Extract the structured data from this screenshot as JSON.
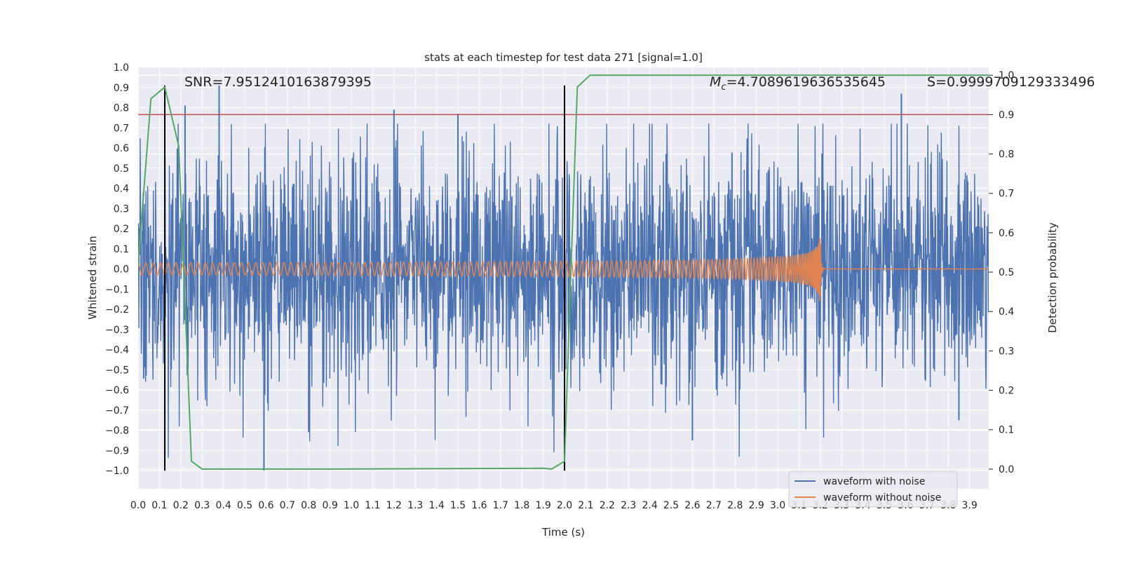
{
  "chart_data": {
    "type": "line",
    "title": "stats at each timestep for test data 271 [signal=1.0]",
    "xlabel": "Time (s)",
    "ylabel": "Whitened strain",
    "y2label": "Detection probability",
    "xlim": [
      0.0,
      3.99
    ],
    "ylim": [
      -1.09,
      1.0
    ],
    "y2lim": [
      -0.05,
      1.02
    ],
    "xticks": [
      "0.0",
      "0.1",
      "0.2",
      "0.3",
      "0.4",
      "0.5",
      "0.6",
      "0.7",
      "0.8",
      "0.9",
      "1.0",
      "1.1",
      "1.2",
      "1.3",
      "1.4",
      "1.5",
      "1.6",
      "1.7",
      "1.8",
      "1.9",
      "2.0",
      "2.1",
      "2.2",
      "2.3",
      "2.4",
      "2.5",
      "2.6",
      "2.7",
      "2.8",
      "2.9",
      "3.0",
      "3.1",
      "3.2",
      "3.3",
      "3.4",
      "3.5",
      "3.6",
      "3.7",
      "3.8",
      "3.9"
    ],
    "yticks": [
      "1.0",
      "0.9",
      "0.8",
      "0.7",
      "0.6",
      "0.5",
      "0.4",
      "0.3",
      "0.2",
      "0.1",
      "0.0",
      "−0.1",
      "−0.2",
      "−0.3",
      "−0.4",
      "−0.5",
      "−0.6",
      "−0.7",
      "−0.8",
      "−0.9",
      "−1.0"
    ],
    "y2ticks": [
      "1.0",
      "0.9",
      "0.8",
      "0.7",
      "0.6",
      "0.5",
      "0.4",
      "0.3",
      "0.2",
      "0.1",
      "0.0"
    ],
    "annotations": {
      "snr": "SNR=7.9512410163879395",
      "mc_symbol": "M",
      "mc_subscript": "c",
      "mc_value": "=4.7089619636535645",
      "s": "S=0.9999709129333496"
    },
    "legend": {
      "position": "lower-right",
      "entries": [
        "waveform with noise",
        "waveform without noise"
      ]
    },
    "colors": {
      "noise": "#4c72b0",
      "clean": "#dd8452",
      "prob": "#55a868",
      "threshold": "#c44e52",
      "markers": "#000000",
      "background": "#eaeaf2",
      "grid": "#ffffff"
    },
    "series": [
      {
        "name": "waveform with noise",
        "description": "noisy whitened strain, amplitude roughly ±0.6 with spikes to ±1.0",
        "approx_amplitude": 0.45,
        "spikes": [
          {
            "t": 0.22,
            "y": 0.81
          },
          {
            "t": 0.38,
            "y": 0.91
          },
          {
            "t": 0.59,
            "y": -1.0
          },
          {
            "t": 0.8,
            "y": -0.81
          },
          {
            "t": 1.2,
            "y": 0.79
          },
          {
            "t": 1.5,
            "y": 0.77
          },
          {
            "t": 2.0,
            "y": -0.81
          },
          {
            "t": 2.6,
            "y": -0.85
          },
          {
            "t": 3.58,
            "y": 0.87
          },
          {
            "t": 3.85,
            "y": -0.75
          }
        ]
      },
      {
        "name": "waveform without noise",
        "description": "chirp signal with growing amplitude and frequency, merging at ~3.2 s",
        "merger_time": 3.2,
        "start_amplitude": 0.03,
        "peak_amplitude": 0.19,
        "end_time": 3.99
      },
      {
        "name": "detection probability",
        "axis": "right",
        "x": [
          0.0,
          0.06,
          0.125,
          0.19,
          0.25,
          0.3,
          0.9,
          1.9,
          1.94,
          2.0,
          2.03,
          2.06,
          2.12,
          3.99
        ],
        "values": [
          0.52,
          0.94,
          0.97,
          0.82,
          0.02,
          0.0,
          0.0,
          0.002,
          0.0,
          0.02,
          0.5,
          0.97,
          1.0,
          1.0
        ]
      }
    ],
    "reference_lines": {
      "threshold": {
        "axis": "right",
        "value": 0.9
      },
      "markers": [
        {
          "t": 0.125,
          "from": -1.0,
          "to": 0.91
        },
        {
          "t": 2.0,
          "from": -1.0,
          "to": 0.91
        }
      ]
    }
  }
}
